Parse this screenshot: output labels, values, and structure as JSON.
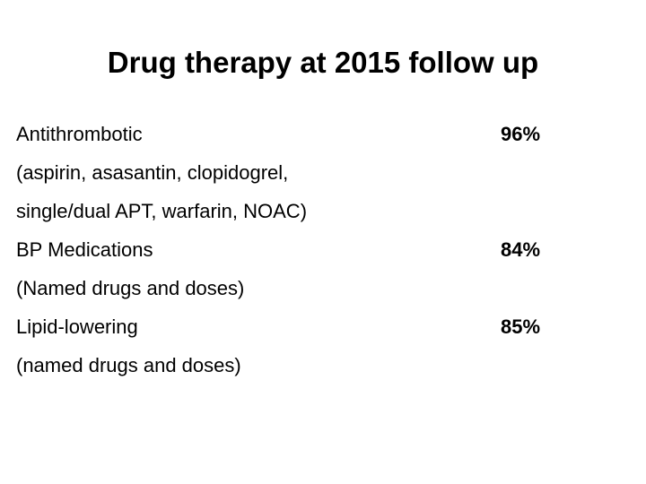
{
  "title": "Drug therapy at 2015 follow up",
  "rows": [
    {
      "lines": [
        "Antithrombotic",
        "(aspirin, asasantin, clopidogrel,",
        "single/dual APT, warfarin, NOAC)"
      ],
      "value": "96%"
    },
    {
      "lines": [
        "BP Medications",
        "(Named drugs and doses)"
      ],
      "value": "84%"
    },
    {
      "lines": [
        "Lipid-lowering",
        "(named drugs and doses)"
      ],
      "value": "85%"
    }
  ]
}
